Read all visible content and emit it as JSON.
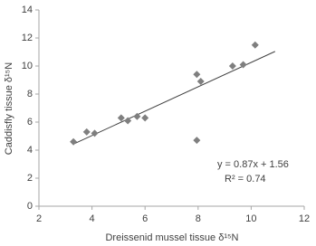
{
  "chart_data": {
    "type": "scatter",
    "x_label": "Dreissenid mussel tissue δ¹⁵N",
    "y_label": "Caddisfly tissue δ¹⁵N",
    "x": [
      3.3,
      3.8,
      4.1,
      5.1,
      5.35,
      5.7,
      6.0,
      7.95,
      8.1,
      7.95,
      9.3,
      9.7,
      10.15
    ],
    "values": [
      4.6,
      5.3,
      5.2,
      6.3,
      6.1,
      6.4,
      6.3,
      9.4,
      8.9,
      4.7,
      10.0,
      10.1,
      11.5
    ],
    "color": "#7f7f7f",
    "trendline": {
      "x": [
        3.3,
        10.9
      ],
      "values": [
        4.43,
        11.04
      ],
      "color": "#404040"
    },
    "annotations": [
      "y = 0.87x + 1.56",
      "R² = 0.74"
    ],
    "xlim": [
      2,
      12
    ],
    "xticks": [
      2,
      4,
      6,
      8,
      10,
      12
    ],
    "ylim": [
      0,
      14
    ],
    "yticks": [
      0,
      2,
      4,
      6,
      8,
      10,
      12,
      14
    ],
    "grid": false
  }
}
